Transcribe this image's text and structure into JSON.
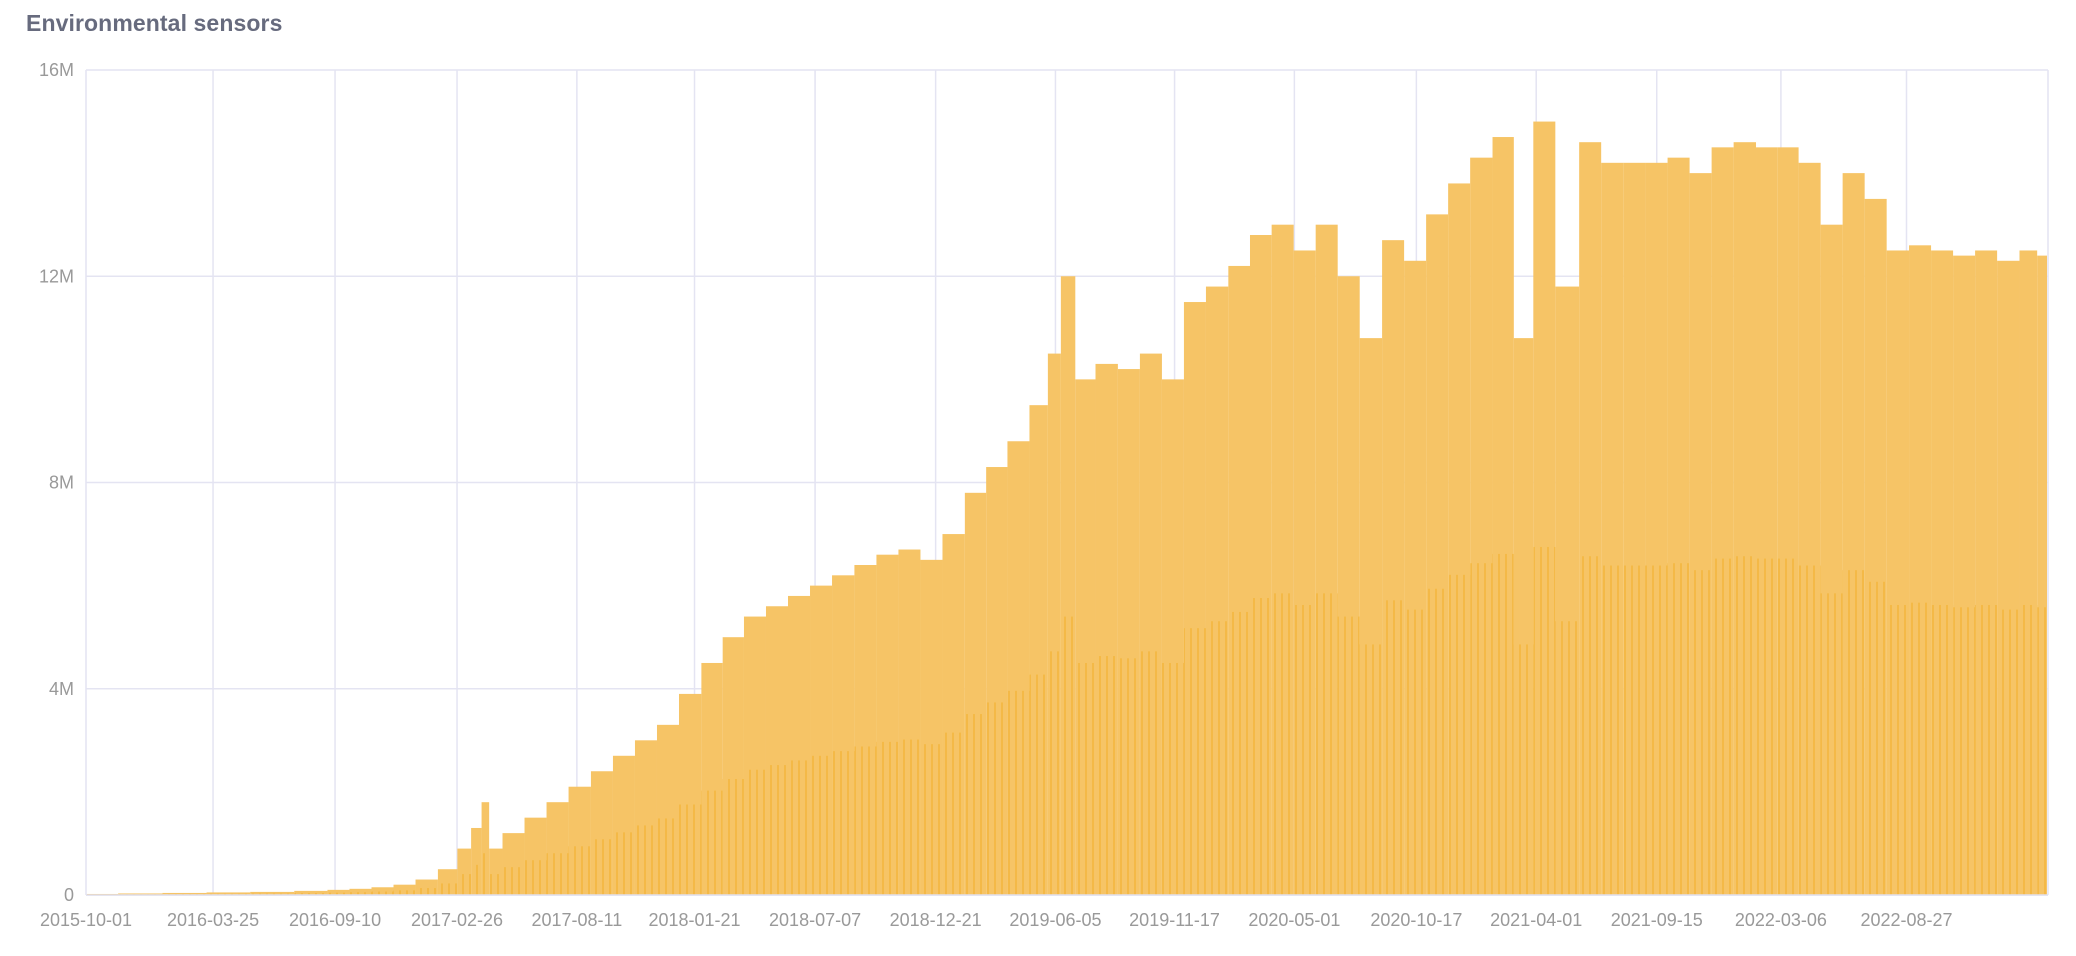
{
  "chart_data": {
    "type": "bar",
    "title": "Environmental sensors",
    "xlabel": "",
    "ylabel": "",
    "xlim": [
      "2015-10-01",
      "2023-03-11"
    ],
    "ylim": [
      0,
      16000000
    ],
    "grid": true,
    "color": "#f5b83d",
    "y_ticks": [
      {
        "v": 0,
        "label": "0"
      },
      {
        "v": 4000000,
        "label": "4M"
      },
      {
        "v": 8000000,
        "label": "8M"
      },
      {
        "v": 12000000,
        "label": "12M"
      },
      {
        "v": 16000000,
        "label": "16M"
      }
    ],
    "x_ticks": [
      "2015-10-01",
      "2016-03-25",
      "2016-09-10",
      "2017-02-26",
      "2017-08-11",
      "2018-01-21",
      "2018-07-07",
      "2018-12-21",
      "2019-06-05",
      "2019-11-17",
      "2020-05-01",
      "2020-10-17",
      "2021-04-01",
      "2021-09-15",
      "2022-03-06",
      "2022-08-27"
    ],
    "series": [
      {
        "x": [
          "2015-10-15",
          "2015-12-15",
          "2016-02-15",
          "2016-04-15",
          "2016-06-15",
          "2016-08-15",
          "2016-09-15",
          "2016-10-15",
          "2016-11-15",
          "2016-12-15",
          "2017-01-15",
          "2017-02-15",
          "2017-03-10",
          "2017-03-25",
          "2017-04-08",
          "2017-04-15",
          "2017-05-15",
          "2017-06-15",
          "2017-07-15",
          "2017-08-15",
          "2017-09-15",
          "2017-10-15",
          "2017-11-15",
          "2017-12-15",
          "2018-01-15",
          "2018-02-15",
          "2018-03-15",
          "2018-04-15",
          "2018-05-15",
          "2018-06-15",
          "2018-07-15",
          "2018-08-15",
          "2018-09-15",
          "2018-10-15",
          "2018-11-15",
          "2018-12-15",
          "2019-01-15",
          "2019-02-15",
          "2019-03-15",
          "2019-04-15",
          "2019-05-15",
          "2019-06-05",
          "2019-06-20",
          "2019-07-15",
          "2019-08-15",
          "2019-09-15",
          "2019-10-15",
          "2019-11-15",
          "2019-12-15",
          "2020-01-15",
          "2020-02-15",
          "2020-03-15",
          "2020-04-15",
          "2020-05-15",
          "2020-06-15",
          "2020-07-15",
          "2020-08-15",
          "2020-09-15",
          "2020-10-15",
          "2020-11-15",
          "2020-12-15",
          "2021-01-15",
          "2021-02-15",
          "2021-03-15",
          "2021-04-10",
          "2021-05-15",
          "2021-06-15",
          "2021-07-15",
          "2021-08-15",
          "2021-09-15",
          "2021-10-15",
          "2021-11-15",
          "2021-12-15",
          "2022-01-15",
          "2022-02-15",
          "2022-03-15",
          "2022-04-15",
          "2022-05-15",
          "2022-06-15",
          "2022-07-15",
          "2022-08-15",
          "2022-09-15",
          "2022-10-15",
          "2022-11-15",
          "2022-12-15",
          "2023-01-15",
          "2023-02-15",
          "2023-03-05"
        ],
        "values": [
          20000,
          30000,
          40000,
          50000,
          60000,
          80000,
          100000,
          120000,
          150000,
          200000,
          300000,
          500000,
          900000,
          1300000,
          1800000,
          900000,
          1200000,
          1500000,
          1800000,
          2100000,
          2400000,
          2700000,
          3000000,
          3300000,
          3900000,
          4500000,
          5000000,
          5400000,
          5600000,
          5800000,
          6000000,
          6200000,
          6400000,
          6600000,
          6700000,
          6500000,
          7000000,
          7800000,
          8300000,
          8800000,
          9500000,
          10500000,
          12000000,
          10000000,
          10300000,
          10200000,
          10500000,
          10000000,
          11500000,
          11800000,
          12200000,
          12800000,
          13000000,
          12500000,
          13000000,
          12000000,
          10800000,
          12700000,
          12300000,
          13200000,
          13800000,
          14300000,
          14700000,
          10800000,
          15000000,
          11800000,
          14600000,
          14200000,
          14200000,
          14200000,
          14300000,
          14000000,
          14500000,
          14600000,
          14500000,
          14500000,
          14200000,
          13000000,
          14000000,
          13500000,
          12500000,
          12600000,
          12500000,
          12400000,
          12500000,
          12300000,
          12500000,
          12400000
        ]
      }
    ]
  }
}
